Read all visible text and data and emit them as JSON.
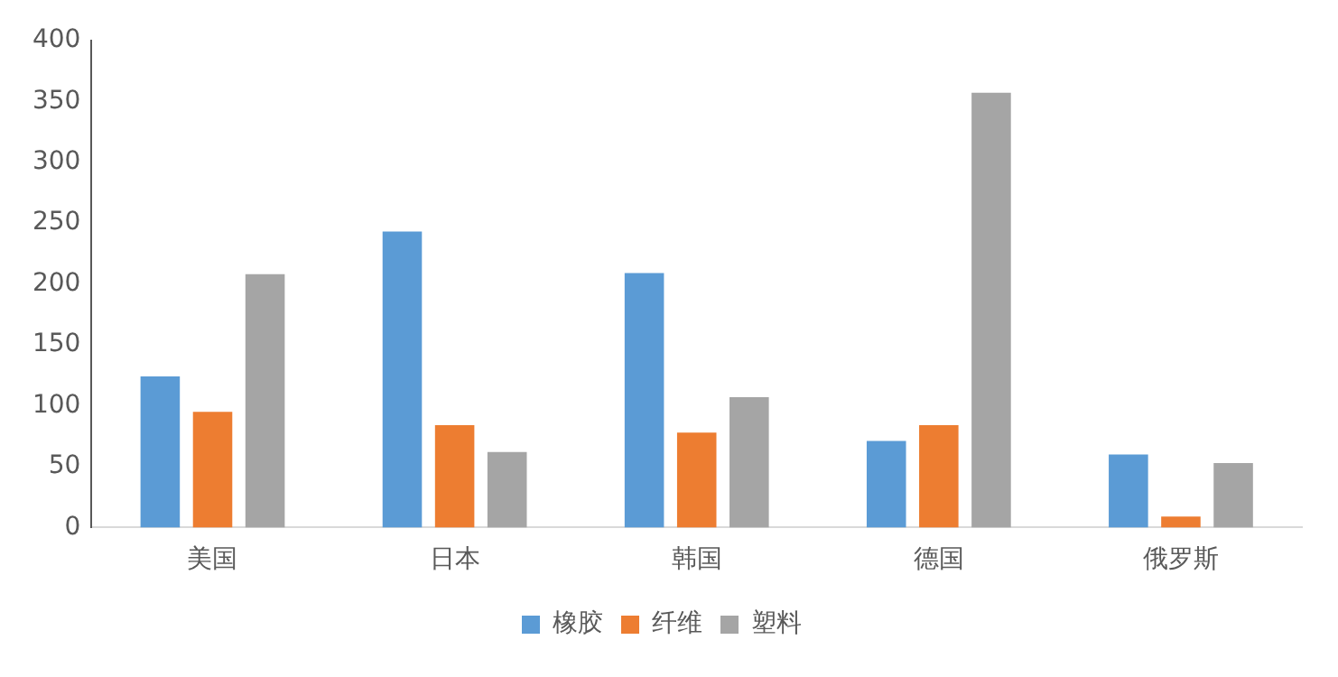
{
  "chart_data": {
    "type": "bar",
    "categories": [
      "美国",
      "日本",
      "韩国",
      "德国",
      "俄罗斯"
    ],
    "series": [
      {
        "name": "橡胶",
        "color": "#5b9bd5",
        "values": [
          124,
          243,
          209,
          71,
          60
        ]
      },
      {
        "name": "纤维",
        "color": "#ed7d31",
        "values": [
          95,
          84,
          78,
          84,
          9
        ]
      },
      {
        "name": "塑料",
        "color": "#a5a5a5",
        "values": [
          208,
          62,
          107,
          357,
          53
        ]
      }
    ],
    "ylim": [
      0,
      400
    ],
    "yticks": [
      0,
      50,
      100,
      150,
      200,
      250,
      300,
      350,
      400
    ],
    "grid": false,
    "legend": "bottom"
  }
}
